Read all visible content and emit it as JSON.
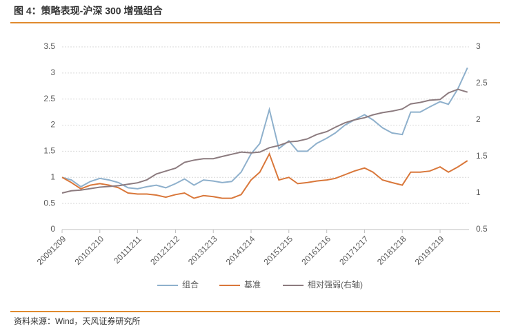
{
  "chart_data": {
    "type": "line",
    "title": "图 4：策略表现-沪深 300 增强组合",
    "source": "资料来源：Wind，天风证券研究所",
    "x": [
      "20091209",
      "20100309",
      "20100609",
      "20100909",
      "20101210",
      "20110309",
      "20110609",
      "20110909",
      "20111211",
      "20120309",
      "20120609",
      "20120909",
      "20121212",
      "20130309",
      "20130609",
      "20130909",
      "20131213",
      "20140309",
      "20140609",
      "20140909",
      "20141214",
      "20150309",
      "20150609",
      "20150909",
      "20151215",
      "20160309",
      "20160609",
      "20160909",
      "20161216",
      "20170309",
      "20170609",
      "20170909",
      "20171217",
      "20180309",
      "20180609",
      "20180909",
      "20181218",
      "20190309",
      "20190609",
      "20190909",
      "20191219",
      "20200309",
      "20200609",
      "20200909"
    ],
    "xticks": [
      "20091209",
      "20101210",
      "20111211",
      "20121212",
      "20131213",
      "20141214",
      "20151215",
      "20161216",
      "20171217",
      "20181218",
      "20191219"
    ],
    "series": [
      {
        "name": "组合",
        "color": "#8eb0cc",
        "values": [
          1.0,
          0.95,
          0.82,
          0.92,
          0.98,
          0.95,
          0.9,
          0.8,
          0.78,
          0.82,
          0.85,
          0.8,
          0.88,
          0.97,
          0.85,
          0.95,
          0.93,
          0.9,
          0.92,
          1.1,
          1.45,
          1.65,
          2.3,
          1.55,
          1.7,
          1.5,
          1.5,
          1.65,
          1.75,
          1.85,
          2.0,
          2.1,
          2.2,
          2.1,
          1.95,
          1.85,
          1.82,
          2.25,
          2.25,
          2.35,
          2.45,
          2.4,
          2.7,
          3.1
        ]
      },
      {
        "name": "基准",
        "color": "#d9773a",
        "values": [
          1.0,
          0.9,
          0.78,
          0.85,
          0.88,
          0.85,
          0.8,
          0.7,
          0.68,
          0.68,
          0.66,
          0.62,
          0.67,
          0.7,
          0.6,
          0.65,
          0.63,
          0.6,
          0.6,
          0.67,
          0.95,
          1.1,
          1.45,
          0.95,
          1.0,
          0.88,
          0.9,
          0.93,
          0.95,
          0.98,
          1.05,
          1.12,
          1.18,
          1.1,
          0.95,
          0.9,
          0.85,
          1.1,
          1.1,
          1.12,
          1.2,
          1.1,
          1.2,
          1.32
        ]
      },
      {
        "name": "相对强弱(右轴)",
        "color": "#8c7b7f",
        "axis": "y2",
        "values": [
          1.0,
          1.03,
          1.04,
          1.06,
          1.08,
          1.09,
          1.1,
          1.12,
          1.14,
          1.18,
          1.26,
          1.3,
          1.34,
          1.42,
          1.45,
          1.47,
          1.47,
          1.5,
          1.53,
          1.56,
          1.55,
          1.56,
          1.62,
          1.65,
          1.7,
          1.71,
          1.74,
          1.8,
          1.84,
          1.9,
          1.96,
          2.0,
          2.03,
          2.07,
          2.1,
          2.12,
          2.15,
          2.22,
          2.24,
          2.27,
          2.28,
          2.37,
          2.42,
          2.38
        ]
      }
    ],
    "ylim": [
      0,
      3.5
    ],
    "yticks": [
      0,
      0.5,
      1,
      1.5,
      2,
      2.5,
      3,
      3.5
    ],
    "y2lim": [
      0.5,
      3
    ],
    "y2ticks": [
      0.5,
      1,
      1.5,
      2,
      2.5,
      3
    ],
    "grid": true,
    "legend": "bottom"
  }
}
